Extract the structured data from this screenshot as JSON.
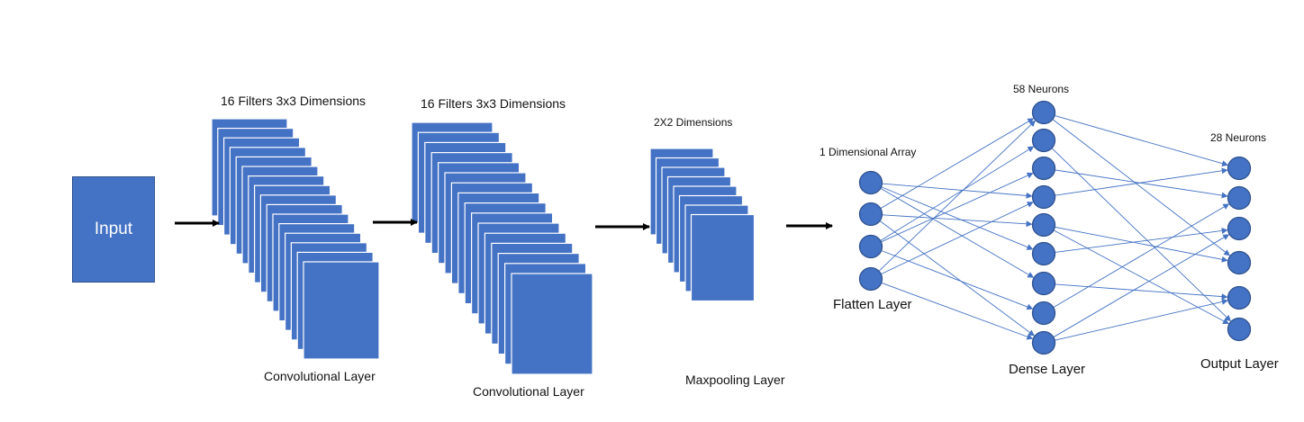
{
  "input": {
    "label": "Input"
  },
  "conv1": {
    "top_label": "16 Filters 3x3 Dimensions",
    "bottom_label": "Convolutional Layer",
    "filter_count": 16
  },
  "conv2": {
    "top_label": "16 Filters 3x3 Dimensions",
    "bottom_label": "Convolutional Layer",
    "filter_count": 16
  },
  "maxpool": {
    "top_label": "2X2 Dimensions",
    "bottom_label": "Maxpooling Layer"
  },
  "flatten": {
    "top_label": "1 Dimensional Array",
    "bottom_label": "Flatten Layer",
    "node_count": 4
  },
  "dense": {
    "top_label": "58 Neurons",
    "bottom_label": "Dense Layer",
    "node_count": 9
  },
  "output": {
    "top_label": "28 Neurons",
    "bottom_label": "Output Layer",
    "node_count": 6
  },
  "colors": {
    "fill": "#4472c4",
    "stroke": "#2f528f",
    "edge": "#4472c4",
    "arrow": "#000000"
  }
}
